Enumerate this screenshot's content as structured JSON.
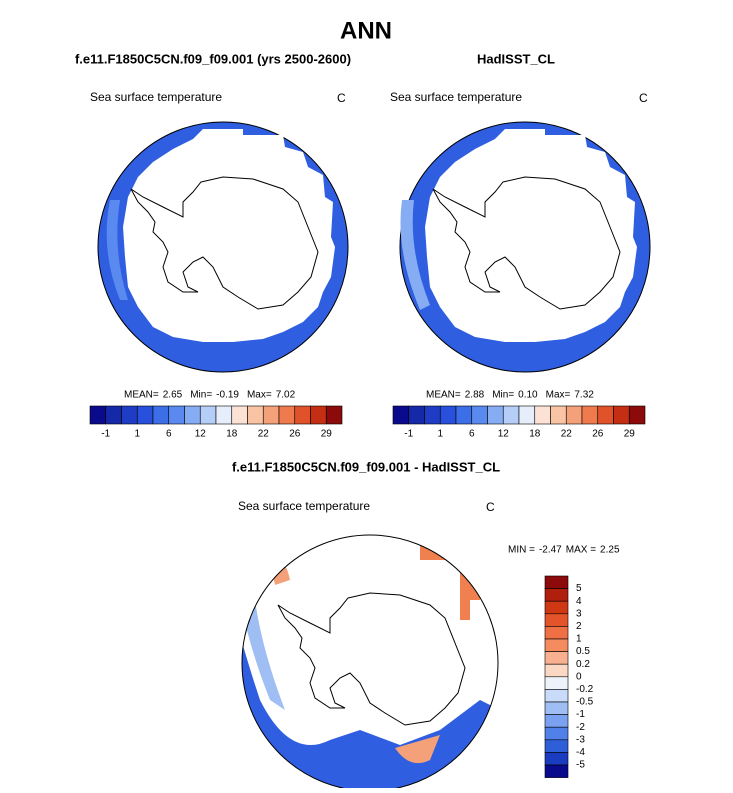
{
  "title": "ANN",
  "panels": [
    {
      "case": "f.e11.F1850C5CN.f09_f09.001 (yrs 2500-2600)",
      "variable": "Sea surface temperature",
      "units": "C",
      "stats": [
        {
          "label": "MEAN=",
          "value": "2.65"
        },
        {
          "label": "Min=",
          "value": "-0.19"
        },
        {
          "label": "Max=",
          "value": "7.02"
        }
      ]
    },
    {
      "case": "HadISST_CL",
      "variable": "Sea surface temperature",
      "units": "C",
      "stats": [
        {
          "label": "MEAN=",
          "value": "2.88"
        },
        {
          "label": "Min=",
          "value": "0.10"
        },
        {
          "label": "Max=",
          "value": "7.32"
        }
      ]
    }
  ],
  "colorbar": {
    "labels": [
      -1,
      1,
      6,
      12,
      18,
      22,
      26,
      29
    ],
    "colors": [
      "#0a0a8c",
      "#1428a8",
      "#1e3cc4",
      "#2850dc",
      "#3c6ee8",
      "#5a8af0",
      "#86acf4",
      "#b4cef8",
      "#e6eefb",
      "#fbe2d4",
      "#f8c4a4",
      "#f4a078",
      "#ee7a4e",
      "#e0522a",
      "#c42e12",
      "#8c0a0a"
    ]
  },
  "difference": {
    "title": "f.e11.F1850C5CN.f09_f09.001 - HadISST_CL",
    "variable": "Sea surface temperature",
    "units": "C",
    "stats": [
      {
        "label": "MIN =",
        "value": "-2.47"
      },
      {
        "label": "MAX =",
        "value": "2.25"
      }
    ],
    "colorbar": {
      "labels": [
        5,
        4,
        3,
        2,
        1,
        0.5,
        0.2,
        0,
        -0.2,
        -0.5,
        -1,
        -2,
        -3,
        -4,
        -5
      ],
      "colors": [
        "#8c0a0a",
        "#b01e0e",
        "#d03814",
        "#e4542a",
        "#ee7044",
        "#f48c60",
        "#f8b090",
        "#fbd8c4",
        "#eef2fb",
        "#c8dbf8",
        "#9ebef4",
        "#7aa2f0",
        "#5080e8",
        "#2e5ed8",
        "#1a3cc0",
        "#0a0a8c"
      ]
    }
  }
}
